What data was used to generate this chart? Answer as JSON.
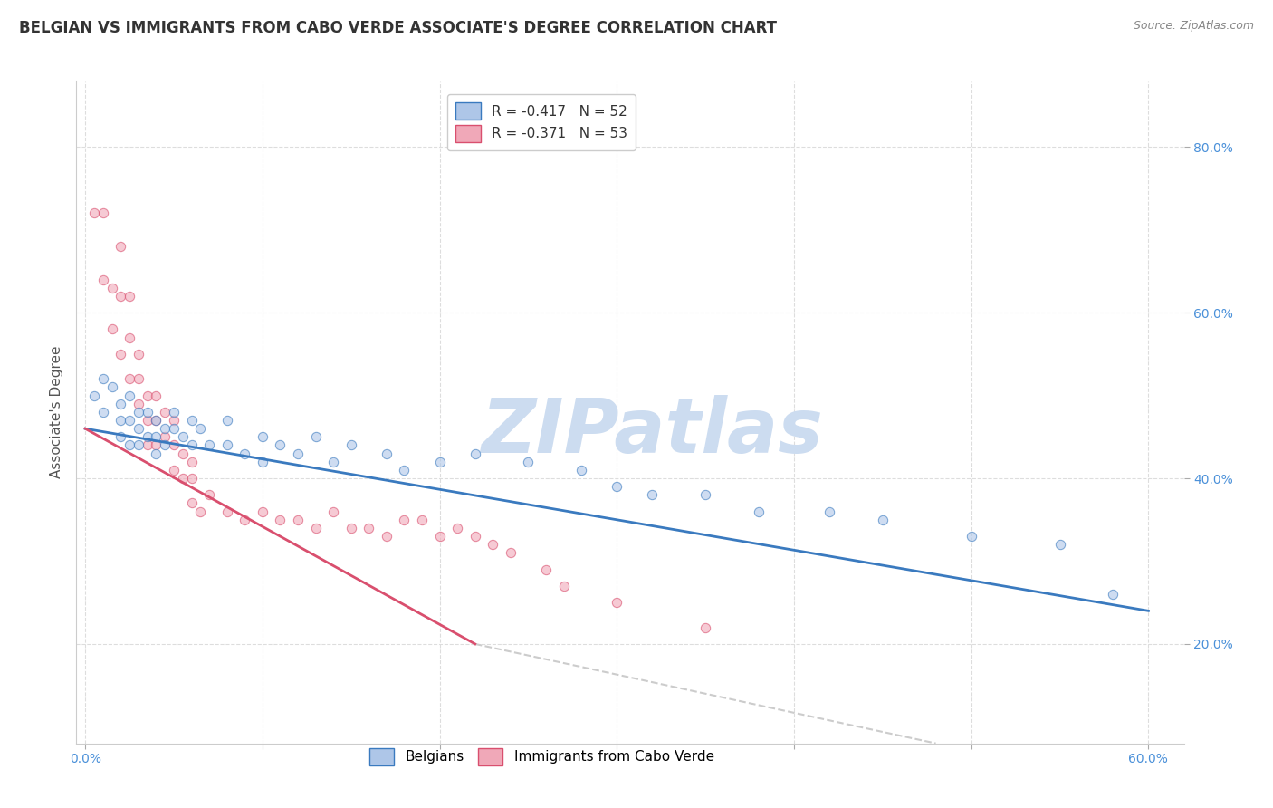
{
  "title": "BELGIAN VS IMMIGRANTS FROM CABO VERDE ASSOCIATE'S DEGREE CORRELATION CHART",
  "source": "Source: ZipAtlas.com",
  "ylabel": "Associate's Degree",
  "xlim": [
    -0.005,
    0.62
  ],
  "ylim": [
    0.08,
    0.88
  ],
  "xticks": [
    0.0,
    0.1,
    0.2,
    0.3,
    0.4,
    0.5,
    0.6
  ],
  "xticklabels": [
    "0.0%",
    "",
    "",
    "",
    "",
    "",
    "60.0%"
  ],
  "yticks": [
    0.2,
    0.4,
    0.6,
    0.8
  ],
  "yticklabels": [
    "20.0%",
    "40.0%",
    "60.0%",
    "80.0%"
  ],
  "legend_line1": "R = -0.417   N = 52",
  "legend_line2": "R = -0.371   N = 53",
  "blue_scatter_color": "#aec6e8",
  "pink_scatter_color": "#f0a8b8",
  "blue_line_color": "#3a7abf",
  "pink_line_color": "#d94f6e",
  "dashed_line_color": "#cccccc",
  "watermark_text": "ZIPatlas",
  "watermark_color": "#ccdcf0",
  "blue_x": [
    0.005,
    0.01,
    0.01,
    0.015,
    0.02,
    0.02,
    0.02,
    0.025,
    0.025,
    0.025,
    0.03,
    0.03,
    0.03,
    0.035,
    0.035,
    0.04,
    0.04,
    0.04,
    0.045,
    0.045,
    0.05,
    0.05,
    0.055,
    0.06,
    0.06,
    0.065,
    0.07,
    0.08,
    0.08,
    0.09,
    0.1,
    0.1,
    0.11,
    0.12,
    0.13,
    0.14,
    0.15,
    0.17,
    0.18,
    0.2,
    0.22,
    0.25,
    0.28,
    0.3,
    0.32,
    0.35,
    0.38,
    0.42,
    0.45,
    0.5,
    0.55,
    0.58
  ],
  "blue_y": [
    0.5,
    0.52,
    0.48,
    0.51,
    0.49,
    0.47,
    0.45,
    0.5,
    0.47,
    0.44,
    0.48,
    0.46,
    0.44,
    0.48,
    0.45,
    0.47,
    0.45,
    0.43,
    0.46,
    0.44,
    0.48,
    0.46,
    0.45,
    0.47,
    0.44,
    0.46,
    0.44,
    0.47,
    0.44,
    0.43,
    0.45,
    0.42,
    0.44,
    0.43,
    0.45,
    0.42,
    0.44,
    0.43,
    0.41,
    0.42,
    0.43,
    0.42,
    0.41,
    0.39,
    0.38,
    0.38,
    0.36,
    0.36,
    0.35,
    0.33,
    0.32,
    0.26
  ],
  "pink_x": [
    0.005,
    0.01,
    0.01,
    0.015,
    0.015,
    0.02,
    0.02,
    0.02,
    0.025,
    0.025,
    0.025,
    0.03,
    0.03,
    0.03,
    0.035,
    0.035,
    0.035,
    0.04,
    0.04,
    0.04,
    0.045,
    0.045,
    0.05,
    0.05,
    0.05,
    0.055,
    0.055,
    0.06,
    0.06,
    0.06,
    0.065,
    0.07,
    0.08,
    0.09,
    0.1,
    0.11,
    0.12,
    0.13,
    0.14,
    0.15,
    0.16,
    0.17,
    0.18,
    0.19,
    0.2,
    0.21,
    0.22,
    0.23,
    0.24,
    0.26,
    0.27,
    0.3,
    0.35
  ],
  "pink_y": [
    0.72,
    0.72,
    0.64,
    0.63,
    0.58,
    0.68,
    0.62,
    0.55,
    0.62,
    0.57,
    0.52,
    0.55,
    0.52,
    0.49,
    0.5,
    0.47,
    0.44,
    0.5,
    0.47,
    0.44,
    0.48,
    0.45,
    0.47,
    0.44,
    0.41,
    0.43,
    0.4,
    0.42,
    0.4,
    0.37,
    0.36,
    0.38,
    0.36,
    0.35,
    0.36,
    0.35,
    0.35,
    0.34,
    0.36,
    0.34,
    0.34,
    0.33,
    0.35,
    0.35,
    0.33,
    0.34,
    0.33,
    0.32,
    0.31,
    0.29,
    0.27,
    0.25,
    0.22
  ],
  "blue_trendline_x": [
    0.0,
    0.6
  ],
  "blue_trendline_y": [
    0.46,
    0.24
  ],
  "pink_trendline_x": [
    0.0,
    0.22
  ],
  "pink_trendline_y": [
    0.46,
    0.2
  ],
  "dashed_trendline_x": [
    0.22,
    0.48
  ],
  "dashed_trendline_y": [
    0.2,
    0.08
  ],
  "background_color": "#ffffff",
  "grid_color": "#dddddd",
  "title_fontsize": 12,
  "axis_label_fontsize": 11,
  "tick_fontsize": 10,
  "scatter_size": 55,
  "scatter_alpha": 0.6
}
